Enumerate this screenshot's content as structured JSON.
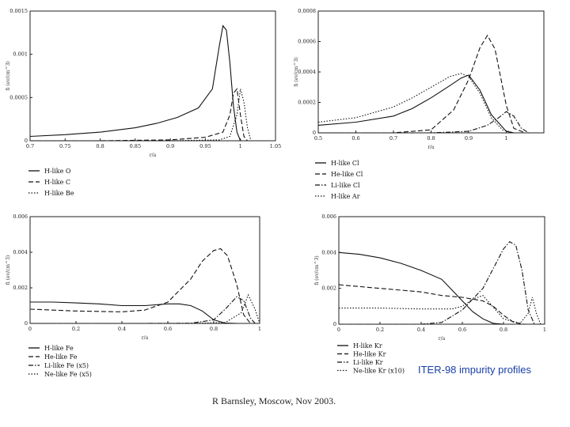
{
  "caption": "ITER-98 impurity profiles",
  "footer": "R Barnsley, Moscow, Nov 2003.",
  "chart_data": [
    {
      "type": "line",
      "xlabel": "r/a",
      "ylabel": "fi (ev/cm^3)",
      "xlim": [
        0.7,
        1.05
      ],
      "ylim": [
        0,
        0.0015
      ],
      "xticks": [
        "0.7",
        "0.75",
        "0.8",
        "0.85",
        "0.9",
        "0.95",
        "1",
        "1.05"
      ],
      "yticks": [
        "0",
        "0.0005",
        "0.001",
        "0.0015"
      ],
      "series": [
        {
          "name": "H-like O",
          "style": "solid",
          "x": [
            0.7,
            0.75,
            0.8,
            0.85,
            0.88,
            0.91,
            0.94,
            0.96,
            0.97,
            0.975,
            0.98,
            0.985,
            0.99,
            0.995,
            1.0
          ],
          "y": [
            5e-05,
            7e-05,
            0.0001,
            0.00015,
            0.0002,
            0.00027,
            0.00038,
            0.0006,
            0.0011,
            0.00133,
            0.00128,
            0.0009,
            0.0004,
            0.0001,
            0.0
          ]
        },
        {
          "name": "H-like C",
          "style": "dash",
          "x": [
            0.7,
            0.8,
            0.9,
            0.95,
            0.975,
            0.985,
            0.99,
            0.995,
            1.0,
            1.005,
            1.01
          ],
          "y": [
            0.0,
            0.0,
            1e-05,
            4e-05,
            0.0001,
            0.0003,
            0.00055,
            0.0006,
            0.0003,
            5e-05,
            0.0
          ]
        },
        {
          "name": "H-like Be",
          "style": "dot",
          "x": [
            0.7,
            0.9,
            0.97,
            0.985,
            0.995,
            1.0,
            1.005,
            1.01,
            1.015
          ],
          "y": [
            0.0,
            0.0,
            1e-05,
            5e-05,
            0.0003,
            0.0006,
            0.00045,
            0.00015,
            0.0
          ]
        }
      ]
    },
    {
      "type": "line",
      "xlabel": "r/a",
      "ylabel": "fi (ev/cm^3)",
      "xlim": [
        0.5,
        1.1
      ],
      "ylim": [
        0,
        0.0008
      ],
      "xticks": [
        "0.5",
        "0.6",
        "0.7",
        "0.8",
        "0.9",
        "1"
      ],
      "yticks": [
        "0",
        "0.0002",
        "0.0004",
        "0.0006",
        "0.0008"
      ],
      "series": [
        {
          "name": "H-like Cl",
          "style": "solid",
          "x": [
            0.5,
            0.6,
            0.7,
            0.75,
            0.8,
            0.85,
            0.88,
            0.9,
            0.93,
            0.96,
            1.0,
            1.02
          ],
          "y": [
            5e-05,
            7e-05,
            0.00011,
            0.00016,
            0.00023,
            0.00031,
            0.00036,
            0.00038,
            0.00028,
            0.00012,
            1e-05,
            0.0
          ]
        },
        {
          "name": "He-like Cl",
          "style": "dash",
          "x": [
            0.5,
            0.7,
            0.8,
            0.86,
            0.9,
            0.93,
            0.95,
            0.97,
            1.0,
            1.02,
            1.05
          ],
          "y": [
            0.0,
            0.0,
            2e-05,
            0.00015,
            0.00035,
            0.00056,
            0.00064,
            0.00055,
            0.00018,
            3e-05,
            0.0
          ]
        },
        {
          "name": "Li-like Cl",
          "style": "dashdot",
          "x": [
            0.5,
            0.8,
            0.9,
            0.95,
            0.98,
            1.0,
            1.02,
            1.04,
            1.06
          ],
          "y": [
            0.0,
            0.0,
            1e-05,
            5e-05,
            0.0001,
            0.00014,
            0.00011,
            3e-05,
            0.0
          ]
        },
        {
          "name": "H-like Ar",
          "style": "dot",
          "x": [
            0.5,
            0.6,
            0.7,
            0.75,
            0.8,
            0.85,
            0.88,
            0.9,
            0.93,
            0.96,
            0.99,
            1.02
          ],
          "y": [
            7e-05,
            0.0001,
            0.00017,
            0.00023,
            0.0003,
            0.00037,
            0.00039,
            0.00037,
            0.00026,
            0.0001,
            2e-05,
            0.0
          ]
        }
      ]
    },
    {
      "type": "line",
      "xlabel": "r/a",
      "ylabel": "fi (ev/cm^3)",
      "xlim": [
        0,
        1
      ],
      "ylim": [
        0,
        0.006
      ],
      "xticks": [
        "0",
        "0.2",
        "0.4",
        "0.6",
        "0.8",
        "1"
      ],
      "yticks": [
        "0",
        "0.002",
        "0.004",
        "0.006"
      ],
      "series": [
        {
          "name": "H-like Fe",
          "style": "solid",
          "x": [
            0.0,
            0.1,
            0.2,
            0.3,
            0.4,
            0.5,
            0.6,
            0.65,
            0.7,
            0.75,
            0.8,
            0.85,
            0.9
          ],
          "y": [
            0.0012,
            0.0012,
            0.00115,
            0.0011,
            0.001,
            0.001,
            0.0011,
            0.0011,
            0.001,
            0.0007,
            0.0002,
            2e-05,
            0.0
          ]
        },
        {
          "name": "He-like Fe",
          "style": "dash",
          "x": [
            0.0,
            0.2,
            0.4,
            0.5,
            0.6,
            0.7,
            0.75,
            0.8,
            0.83,
            0.86,
            0.9,
            0.93,
            0.96
          ],
          "y": [
            0.0008,
            0.0007,
            0.00065,
            0.00075,
            0.0012,
            0.0025,
            0.0035,
            0.0041,
            0.0042,
            0.0038,
            0.0022,
            0.0005,
            0.0
          ]
        },
        {
          "name": "Li-like Fe (x5)",
          "style": "dashdot",
          "x": [
            0.0,
            0.5,
            0.7,
            0.8,
            0.85,
            0.9,
            0.93,
            0.96,
            0.98
          ],
          "y": [
            0.0,
            0.0,
            1e-05,
            0.0002,
            0.0008,
            0.0015,
            0.0013,
            0.0003,
            0.0
          ]
        },
        {
          "name": "Ne-like Fe (x5)",
          "style": "dot",
          "x": [
            0.0,
            0.7,
            0.85,
            0.92,
            0.95,
            0.98,
            1.0
          ],
          "y": [
            0.0,
            0.0,
            5e-05,
            0.0006,
            0.0016,
            0.0008,
            0.0
          ]
        }
      ]
    },
    {
      "type": "line",
      "xlabel": "r/a",
      "ylabel": "fi (ev/cm^3)",
      "xlim": [
        0,
        1
      ],
      "ylim": [
        0,
        0.006
      ],
      "xticks": [
        "0",
        "0.2",
        "0.4",
        "0.6",
        "0.8",
        "1"
      ],
      "yticks": [
        "0",
        "0.002",
        "0.004",
        "0.006"
      ],
      "series": [
        {
          "name": "H-like Kr",
          "style": "solid",
          "x": [
            0.0,
            0.1,
            0.2,
            0.3,
            0.4,
            0.5,
            0.55,
            0.6,
            0.65,
            0.7,
            0.75,
            0.8
          ],
          "y": [
            0.004,
            0.0039,
            0.0037,
            0.0034,
            0.003,
            0.0025,
            0.0019,
            0.0013,
            0.0007,
            0.0003,
            5e-05,
            0.0
          ]
        },
        {
          "name": "He-like Kr",
          "style": "dash",
          "x": [
            0.0,
            0.1,
            0.2,
            0.3,
            0.4,
            0.5,
            0.6,
            0.65,
            0.7,
            0.75,
            0.8,
            0.85,
            0.9
          ],
          "y": [
            0.0022,
            0.0021,
            0.002,
            0.0019,
            0.0018,
            0.0016,
            0.0015,
            0.0014,
            0.0013,
            0.001,
            0.0005,
            0.0001,
            0.0
          ]
        },
        {
          "name": "Li-like Kr",
          "style": "dashdot",
          "x": [
            0.0,
            0.4,
            0.5,
            0.6,
            0.7,
            0.75,
            0.8,
            0.83,
            0.86,
            0.89,
            0.92,
            0.95
          ],
          "y": [
            0.0,
            0.0,
            0.0001,
            0.0008,
            0.002,
            0.0031,
            0.0042,
            0.0046,
            0.0044,
            0.003,
            0.0008,
            0.0
          ]
        },
        {
          "name": "Ne-like Kr (x10)",
          "style": "dot",
          "x": [
            0.0,
            0.2,
            0.4,
            0.55,
            0.6,
            0.65,
            0.7,
            0.8,
            0.88,
            0.92,
            0.94,
            0.96,
            0.98
          ],
          "y": [
            0.0009,
            0.0009,
            0.00085,
            0.00085,
            0.001,
            0.0014,
            0.0016,
            0.0003,
            5e-05,
            0.0006,
            0.0015,
            0.0006,
            0.0
          ]
        }
      ]
    }
  ]
}
